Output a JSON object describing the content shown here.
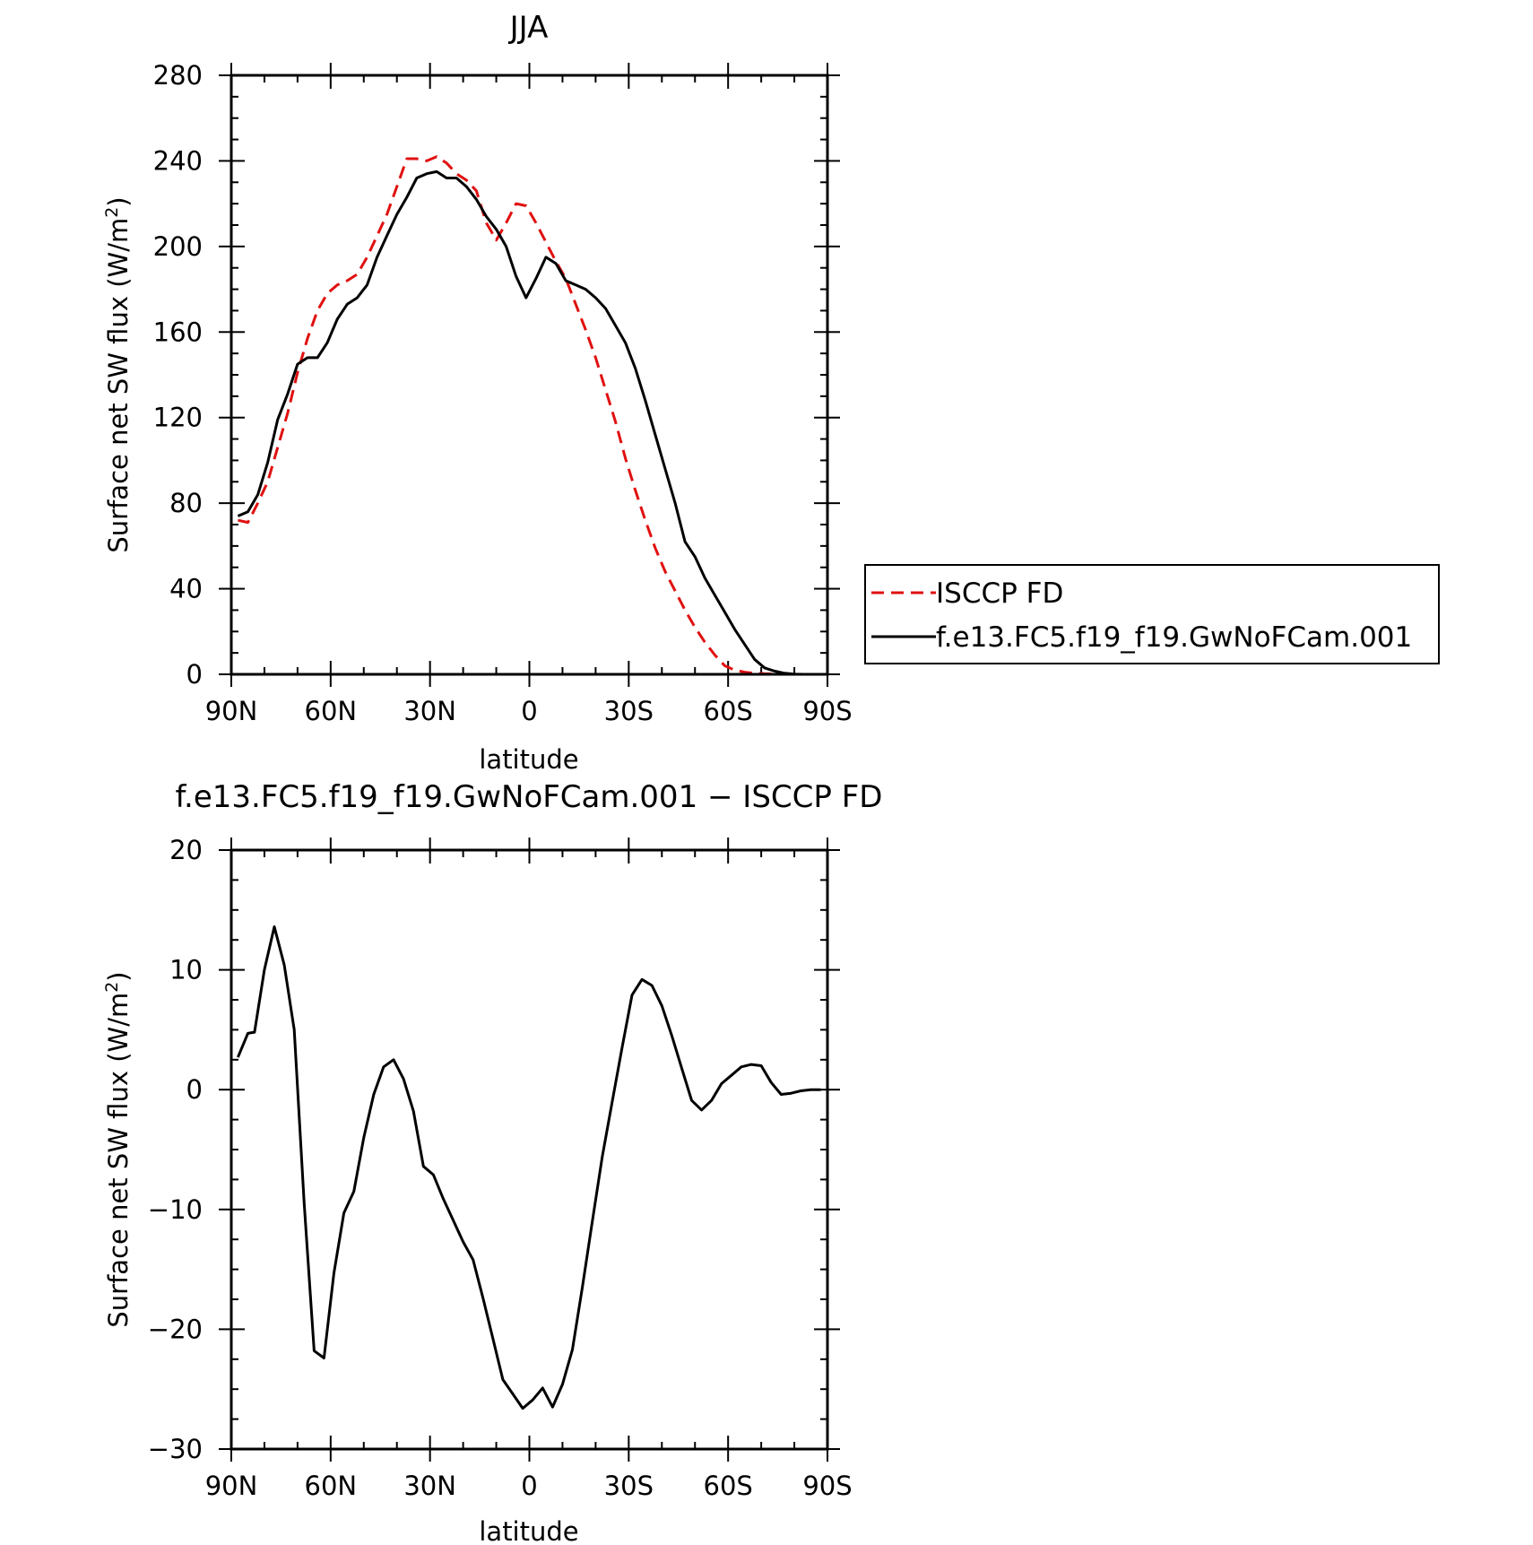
{
  "chart_data": [
    {
      "type": "line",
      "title": "JJA",
      "xlabel": "latitude",
      "ylabel_main": "Surface net SW flux (W/m",
      "ylabel_sup": "2",
      "ylabel_close": ")",
      "xlim": [
        -90,
        90
      ],
      "ylim": [
        0,
        280
      ],
      "xticks": [
        -90,
        -60,
        -30,
        0,
        30,
        60,
        90
      ],
      "xtick_labels": [
        "90N",
        "60N",
        "30N",
        "0",
        "30S",
        "60S",
        "90S"
      ],
      "yticks": [
        0,
        40,
        80,
        120,
        160,
        200,
        240,
        280
      ],
      "ytick_labels": [
        "0",
        "40",
        "80",
        "120",
        "160",
        "200",
        "240",
        "280"
      ],
      "legend_position": "right",
      "series": [
        {
          "name": "ISCCP FD",
          "color": "#e01010",
          "dash": "dashed",
          "x": [
            -88,
            -85,
            -82,
            -79,
            -76,
            -73,
            -70,
            -67,
            -64,
            -61,
            -58,
            -55,
            -52,
            -49,
            -46,
            -43,
            -40,
            -37,
            -34,
            -31,
            -28,
            -25,
            -22,
            -19,
            -16,
            -13,
            -10,
            -7,
            -4,
            -1,
            2,
            5,
            8,
            11,
            14,
            17,
            20,
            23,
            26,
            29,
            32,
            35,
            38,
            41,
            44,
            47,
            50,
            53,
            56,
            59,
            62,
            65,
            68,
            71,
            74,
            77,
            80,
            83,
            86,
            88
          ],
          "y": [
            72,
            71,
            80,
            90,
            106,
            122,
            141,
            157,
            170,
            178,
            182,
            184,
            187,
            195,
            205,
            215,
            228,
            241,
            241,
            240,
            242,
            239,
            234,
            231,
            226,
            211,
            203,
            211,
            220,
            219,
            211,
            202,
            193,
            185,
            173,
            161,
            148,
            133,
            118,
            101,
            86,
            72,
            59,
            48,
            39,
            30,
            22,
            15,
            9,
            4,
            2,
            1,
            0.5,
            0.3,
            0.2,
            0.1,
            0,
            0,
            0,
            0
          ]
        },
        {
          "name": "f.e13.FC5.f19_f19.GwNoFCam.001",
          "color": "#000000",
          "dash": "solid",
          "x": [
            -88,
            -85,
            -82,
            -79,
            -76,
            -73,
            -70,
            -67,
            -64,
            -61,
            -58,
            -55,
            -52,
            -49,
            -46,
            -43,
            -40,
            -37,
            -34,
            -31,
            -28,
            -25,
            -22,
            -19,
            -16,
            -13,
            -10,
            -7,
            -4,
            -1,
            2,
            5,
            8,
            11,
            14,
            17,
            20,
            23,
            26,
            29,
            32,
            35,
            38,
            41,
            44,
            47,
            50,
            53,
            56,
            59,
            62,
            65,
            68,
            71,
            74,
            77,
            80,
            83,
            86,
            88
          ],
          "y": [
            74,
            76,
            84,
            99,
            119,
            131,
            145,
            148,
            148,
            155,
            166,
            173,
            176,
            182,
            195,
            205,
            215,
            223,
            232,
            234,
            235,
            232,
            232,
            228,
            222,
            214,
            208,
            200,
            186,
            176,
            185,
            195,
            192,
            184,
            182,
            180,
            176,
            171,
            163,
            155,
            143,
            128,
            112,
            96,
            80,
            62,
            55,
            45,
            37,
            29,
            21,
            14,
            7,
            3,
            1.5,
            0.5,
            0.1,
            0,
            0,
            0
          ]
        }
      ]
    },
    {
      "type": "line",
      "title": "f.e13.FC5.f19_f19.GwNoFCam.001 − ISCCP FD",
      "xlabel": "latitude",
      "ylabel_main": "Surface net SW flux (W/m",
      "ylabel_sup": "2",
      "ylabel_close": ")",
      "xlim": [
        -90,
        90
      ],
      "ylim": [
        -30,
        20
      ],
      "xticks": [
        -90,
        -60,
        -30,
        0,
        30,
        60,
        90
      ],
      "xtick_labels": [
        "90N",
        "60N",
        "30N",
        "0",
        "30S",
        "60S",
        "90S"
      ],
      "yticks": [
        -30,
        -20,
        -10,
        0,
        10,
        20
      ],
      "ytick_labels": [
        "−30",
        "−20",
        "−10",
        "0",
        "10",
        "20"
      ],
      "series": [
        {
          "color": "#000000",
          "dash": "solid",
          "x": [
            -88,
            -85,
            -83,
            -80,
            -77,
            -74,
            -71,
            -68,
            -65,
            -62,
            -59,
            -56,
            -53,
            -50,
            -47,
            -44,
            -41,
            -38,
            -35,
            -32,
            -29,
            -26,
            -23,
            -20,
            -17,
            -14,
            -11,
            -8,
            -5,
            -2,
            1,
            4,
            7,
            10,
            13,
            16,
            19,
            22,
            25,
            28,
            31,
            34,
            37,
            40,
            43,
            46,
            49,
            52,
            55,
            58,
            61,
            64,
            67,
            70,
            73,
            76,
            79,
            82,
            85,
            88
          ],
          "y": [
            2.7,
            4.7,
            4.8,
            10,
            13.6,
            10.4,
            5,
            -9.5,
            -21.8,
            -22.4,
            -15.3,
            -10.3,
            -8.5,
            -4,
            -0.4,
            1.9,
            2.5,
            0.9,
            -1.8,
            -6.4,
            -7.1,
            -9.1,
            -10.9,
            -12.7,
            -14.2,
            -17.4,
            -20.8,
            -24.2,
            -25.4,
            -26.6,
            -25.9,
            -24.9,
            -26.5,
            -24.6,
            -21.7,
            -16.5,
            -11,
            -5.6,
            -1,
            3.5,
            7.9,
            9.2,
            8.7,
            7,
            4.5,
            1.8,
            -0.9,
            -1.7,
            -0.9,
            0.5,
            1.2,
            1.9,
            2.1,
            2,
            0.6,
            -0.4,
            -0.3,
            -0.1,
            0,
            0
          ]
        }
      ]
    }
  ]
}
